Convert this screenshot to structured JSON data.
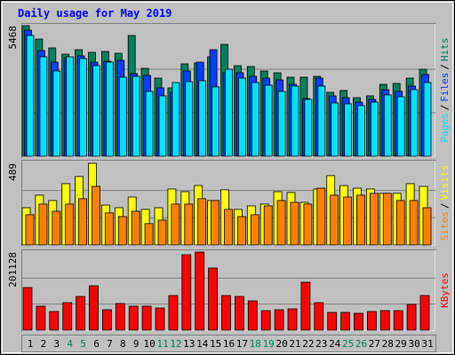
{
  "title": "Daily usage for May 2019",
  "legend_separator": "/",
  "chart_data": [
    {
      "type": "bar",
      "ylim": [
        0,
        5468
      ],
      "yticks": [
        5468
      ],
      "series": [
        {
          "name": "Hits",
          "color": "#00805c",
          "values": [
            5468,
            4910,
            4538,
            4278,
            4464,
            4352,
            4390,
            4315,
            5059,
            3683,
            3274,
            2864,
            3869,
            3906,
            4166,
            4687,
            3794,
            3757,
            3571,
            3497,
            3311,
            3311,
            3348,
            2678,
            2753,
            2455,
            2530,
            3013,
            3050,
            3274,
            3646
          ]
        },
        {
          "name": "Files",
          "color": "#0040ff",
          "values": [
            5282,
            4427,
            3943,
            4129,
            4204,
            3943,
            3980,
            4018,
            3460,
            3385,
            2864,
            2678,
            3571,
            3943,
            4464,
            3497,
            3497,
            3348,
            3274,
            3199,
            3013,
            2418,
            3274,
            2530,
            2455,
            2269,
            2381,
            2790,
            2716,
            2939,
            3422
          ]
        },
        {
          "name": "Pages",
          "color": "#00e0ff",
          "values": [
            5059,
            4166,
            3571,
            4166,
            4092,
            3794,
            3943,
            3311,
            3348,
            2716,
            2530,
            3088,
            3125,
            3162,
            2902,
            3646,
            3274,
            3088,
            2976,
            2716,
            2939,
            2381,
            2939,
            2232,
            2195,
            2120,
            2269,
            2567,
            2492,
            2790,
            3088
          ]
        }
      ]
    },
    {
      "type": "bar",
      "ylim": [
        0,
        489
      ],
      "yticks": [
        489
      ],
      "series": [
        {
          "name": "Visits",
          "color": "#ffff00",
          "values": [
            223,
            298,
            266,
            367,
            410,
            489,
            239,
            223,
            287,
            213,
            223,
            335,
            319,
            356,
            266,
            330,
            213,
            234,
            245,
            319,
            314,
            255,
            335,
            415,
            356,
            340,
            335,
            309,
            309,
            367,
            351
          ]
        },
        {
          "name": "Sites",
          "color": "#ff8000",
          "values": [
            181,
            245,
            202,
            245,
            277,
            351,
            192,
            170,
            202,
            128,
            149,
            245,
            245,
            277,
            266,
            213,
            170,
            181,
            234,
            266,
            255,
            245,
            340,
            298,
            287,
            298,
            309,
            309,
            266,
            266,
            223
          ]
        }
      ]
    },
    {
      "type": "bar",
      "ylim": [
        0,
        201128
      ],
      "yticks": [
        201128
      ],
      "categories": [
        "1",
        "2",
        "3",
        "4",
        "5",
        "6",
        "7",
        "8",
        "9",
        "10",
        "11",
        "12",
        "13",
        "14",
        "15",
        "16",
        "17",
        "18",
        "19",
        "20",
        "21",
        "22",
        "23",
        "24",
        "25",
        "26",
        "27",
        "28",
        "29",
        "30",
        "31"
      ],
      "highlight_indices": [
        3,
        4,
        10,
        11,
        17,
        18,
        24,
        25
      ],
      "highlight_color": "#00805c",
      "series": [
        {
          "name": "KBytes",
          "color": "#ff0000",
          "values": [
            109728,
            61722,
            48006,
            70866,
            86868,
            114300,
            52578,
            68580,
            61722,
            61722,
            57150,
            89154,
            194310,
            201128,
            160020,
            89154,
            86868,
            75438,
            50292,
            52578,
            54864,
            123444,
            70866,
            45720,
            45720,
            43434,
            48006,
            50292,
            50292,
            66294,
            89154
          ]
        }
      ]
    }
  ]
}
